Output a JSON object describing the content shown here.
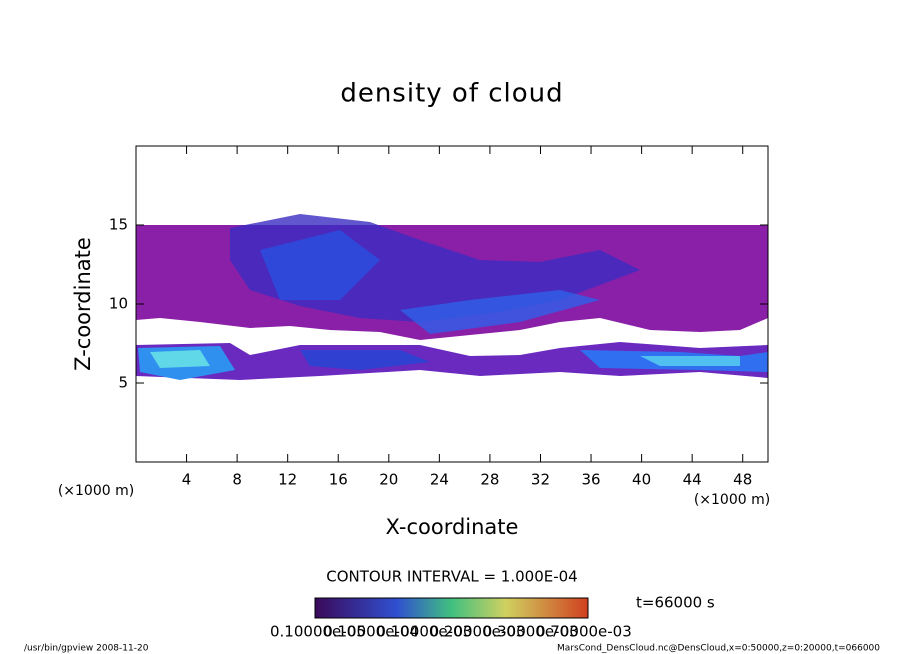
{
  "chart_data": {
    "type": "contour",
    "title": "density of cloud",
    "x_label": "X-coordinate",
    "y_label": "Z-coordinate",
    "x_unit": "(×1000 m)",
    "y_unit": "(×1000 m)",
    "xlim": [
      0,
      50
    ],
    "ylim": [
      0,
      20
    ],
    "xticks": [
      4,
      8,
      12,
      16,
      20,
      24,
      28,
      32,
      36,
      40,
      44,
      48
    ],
    "yticks": [
      5,
      10,
      15
    ],
    "contour_interval": "CONTOUR INTERVAL = 1.000E-04",
    "time_label": "t=66000 s",
    "colorbar_labels": [
      "0.10000e-05",
      "0.10000e-04",
      "0.10000e-03",
      "0.20000e-03",
      "0.30000e-03",
      "0.70000e-03"
    ],
    "footer_left": "/usr/bin/gpview   2008-11-20",
    "footer_right": "MarsCond_DensCloud.nc@DensCloud,x=0:50000,z=0:20000,t=066000"
  }
}
